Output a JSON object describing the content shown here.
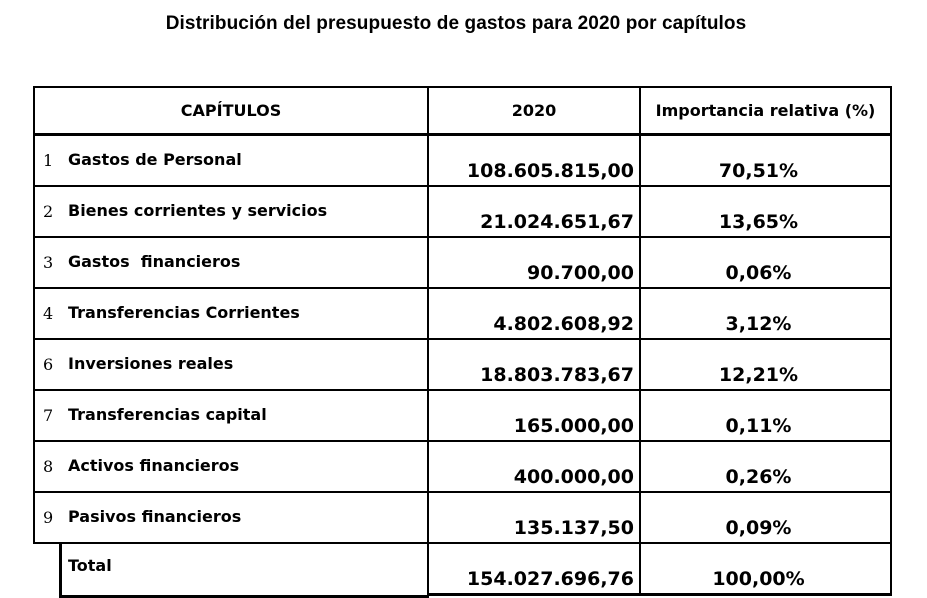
{
  "title": "Distribución del presupuesto de gastos para 2020 por capítulos",
  "table": {
    "headers": {
      "chapters": "CAPÍTULOS",
      "year": "2020",
      "relative": "Importancia relativa (%)"
    },
    "rows": [
      {
        "num": "1",
        "name": "Gastos de Personal",
        "amount": "108.605.815,00",
        "pct": "70,51%"
      },
      {
        "num": "2",
        "name": "Bienes corrientes y servicios",
        "amount": "21.024.651,67",
        "pct": "13,65%"
      },
      {
        "num": "3",
        "name": "Gastos  financieros",
        "amount": "90.700,00",
        "pct": "0,06%"
      },
      {
        "num": "4",
        "name": "Transferencias Corrientes",
        "amount": "4.802.608,92",
        "pct": "3,12%"
      },
      {
        "num": "6",
        "name": "Inversiones reales",
        "amount": "18.803.783,67",
        "pct": "12,21%"
      },
      {
        "num": "7",
        "name": "Transferencias capital",
        "amount": "165.000,00",
        "pct": "0,11%"
      },
      {
        "num": "8",
        "name": "Activos financieros",
        "amount": "400.000,00",
        "pct": "0,26%"
      },
      {
        "num": "9",
        "name": "Pasivos financieros",
        "amount": "135.137,50",
        "pct": "0,09%"
      }
    ],
    "total": {
      "label": "Total",
      "amount": "154.027.696,76",
      "pct": "100,00%"
    }
  }
}
